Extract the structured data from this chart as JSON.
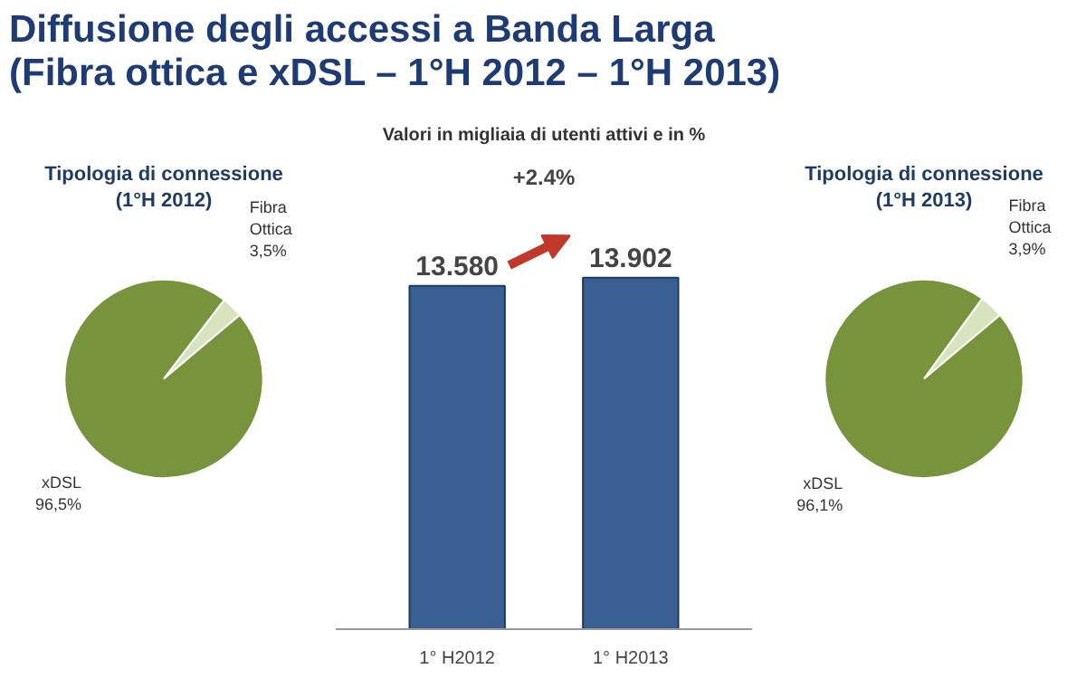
{
  "chart_data": [
    {
      "type": "bar",
      "title": "Diffusione degli accessi a Banda Larga\n(Fibra ottica e xDSL – 1°H 2012 – 1°H 2013)",
      "subtitle": "Valori in migliaia di utenti attivi e in %",
      "categories": [
        "1° H2012",
        "1° H2013"
      ],
      "values": [
        13580,
        13902
      ],
      "value_labels": [
        "13.580",
        "13.902"
      ],
      "color": "#3a5f93",
      "annotations": [
        "+2.4%"
      ],
      "grid": false
    },
    {
      "type": "pie",
      "title": "Tipologia di connessione\n(1°H 2012)",
      "categories": [
        "Fibra\nOttica",
        "xDSL"
      ],
      "values": [
        3.5,
        96.5
      ],
      "value_labels": [
        "3,5%",
        "96,5%"
      ],
      "colors": [
        "#d7e4bd",
        "#77933c"
      ]
    },
    {
      "type": "pie",
      "title": "Tipologia di connessione\n(1°H 2013)",
      "categories": [
        "Fibra\nOttica",
        "xDSL"
      ],
      "values": [
        3.9,
        96.1
      ],
      "value_labels": [
        "3,9%",
        "96,1%"
      ],
      "colors": [
        "#d7e4bd",
        "#77933c"
      ]
    }
  ]
}
